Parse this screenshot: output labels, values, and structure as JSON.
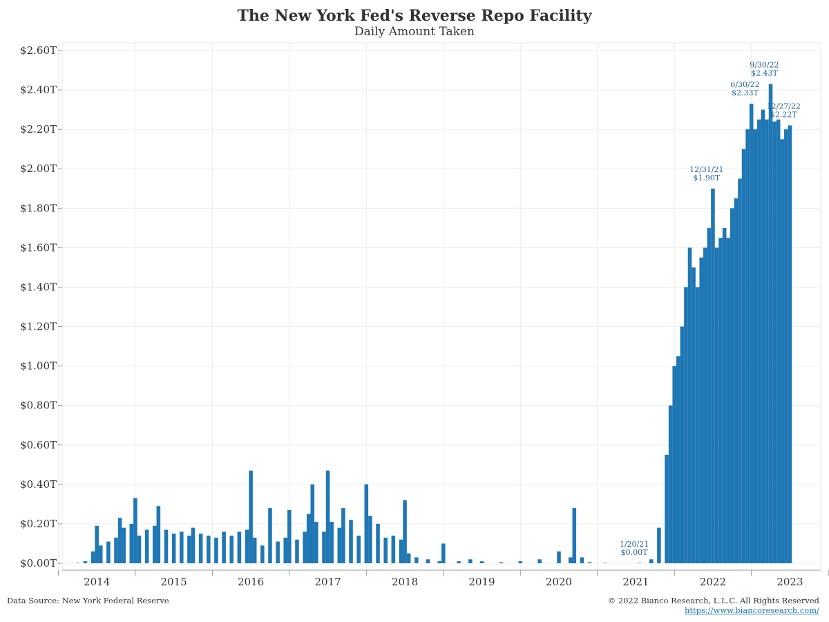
{
  "chart_data": {
    "type": "bar",
    "title": "The New York Fed's Reverse Repo Facility",
    "subtitle": "Daily Amount Taken",
    "xlabel": "",
    "ylabel": "",
    "x_range": [
      2013.55,
      2023.4
    ],
    "ylim": [
      0,
      2.6
    ],
    "y_ticks": [
      0,
      0.2,
      0.4,
      0.6,
      0.8,
      1.0,
      1.2,
      1.4,
      1.6,
      1.8,
      2.0,
      2.2,
      2.4,
      2.6
    ],
    "y_tick_labels": [
      "$0.00T",
      "$0.20T",
      "$0.40T",
      "$0.60T",
      "$0.80T",
      "$1.00T",
      "$1.20T",
      "$1.40T",
      "$1.60T",
      "$1.80T",
      "$2.00T",
      "$2.20T",
      "$2.40T",
      "$2.60T"
    ],
    "x_ticks": [
      2014,
      2015,
      2016,
      2017,
      2018,
      2019,
      2020,
      2021,
      2022,
      2023
    ],
    "x_tick_labels": [
      "2014",
      "2015",
      "2016",
      "2017",
      "2018",
      "2019",
      "2020",
      "2021",
      "2022",
      "2023"
    ],
    "grid": true,
    "bar_color": "#1f77b4",
    "series": [
      {
        "values_trillions_approx": [
          [
            2013.75,
            0.0
          ],
          [
            2013.85,
            0.01
          ],
          [
            2013.95,
            0.06
          ],
          [
            2014.0,
            0.19
          ],
          [
            2014.05,
            0.09
          ],
          [
            2014.15,
            0.11
          ],
          [
            2014.25,
            0.13
          ],
          [
            2014.3,
            0.23
          ],
          [
            2014.35,
            0.18
          ],
          [
            2014.45,
            0.2
          ],
          [
            2014.5,
            0.33
          ],
          [
            2014.55,
            0.14
          ],
          [
            2014.65,
            0.17
          ],
          [
            2014.75,
            0.19
          ],
          [
            2014.8,
            0.29
          ],
          [
            2014.9,
            0.17
          ],
          [
            2015.0,
            0.15
          ],
          [
            2015.1,
            0.16
          ],
          [
            2015.2,
            0.14
          ],
          [
            2015.25,
            0.18
          ],
          [
            2015.35,
            0.15
          ],
          [
            2015.45,
            0.14
          ],
          [
            2015.55,
            0.13
          ],
          [
            2015.65,
            0.16
          ],
          [
            2015.75,
            0.14
          ],
          [
            2015.85,
            0.16
          ],
          [
            2015.95,
            0.17
          ],
          [
            2016.0,
            0.47
          ],
          [
            2016.05,
            0.13
          ],
          [
            2016.15,
            0.09
          ],
          [
            2016.25,
            0.28
          ],
          [
            2016.35,
            0.11
          ],
          [
            2016.45,
            0.13
          ],
          [
            2016.5,
            0.27
          ],
          [
            2016.6,
            0.12
          ],
          [
            2016.7,
            0.16
          ],
          [
            2016.75,
            0.25
          ],
          [
            2016.8,
            0.4
          ],
          [
            2016.85,
            0.21
          ],
          [
            2016.95,
            0.16
          ],
          [
            2017.0,
            0.47
          ],
          [
            2017.05,
            0.21
          ],
          [
            2017.15,
            0.18
          ],
          [
            2017.2,
            0.28
          ],
          [
            2017.3,
            0.22
          ],
          [
            2017.4,
            0.14
          ],
          [
            2017.5,
            0.4
          ],
          [
            2017.55,
            0.24
          ],
          [
            2017.65,
            0.2
          ],
          [
            2017.75,
            0.13
          ],
          [
            2017.85,
            0.14
          ],
          [
            2017.95,
            0.12
          ],
          [
            2018.0,
            0.32
          ],
          [
            2018.05,
            0.05
          ],
          [
            2018.15,
            0.03
          ],
          [
            2018.3,
            0.02
          ],
          [
            2018.45,
            0.01
          ],
          [
            2018.5,
            0.1
          ],
          [
            2018.7,
            0.01
          ],
          [
            2018.85,
            0.02
          ],
          [
            2019.0,
            0.01
          ],
          [
            2019.25,
            0.005
          ],
          [
            2019.5,
            0.01
          ],
          [
            2019.75,
            0.02
          ],
          [
            2020.0,
            0.06
          ],
          [
            2020.15,
            0.03
          ],
          [
            2020.2,
            0.28
          ],
          [
            2020.3,
            0.03
          ],
          [
            2020.4,
            0.005
          ],
          [
            2020.6,
            0.0
          ],
          [
            2021.05,
            0.0
          ],
          [
            2021.2,
            0.02
          ],
          [
            2021.3,
            0.18
          ],
          [
            2021.4,
            0.55
          ],
          [
            2021.45,
            0.8
          ],
          [
            2021.5,
            1.0
          ],
          [
            2021.55,
            1.05
          ],
          [
            2021.6,
            1.2
          ],
          [
            2021.65,
            1.4
          ],
          [
            2021.7,
            1.6
          ],
          [
            2021.75,
            1.5
          ],
          [
            2021.8,
            1.4
          ],
          [
            2021.85,
            1.55
          ],
          [
            2021.9,
            1.6
          ],
          [
            2021.95,
            1.7
          ],
          [
            2022.0,
            1.9
          ],
          [
            2022.05,
            1.6
          ],
          [
            2022.1,
            1.65
          ],
          [
            2022.15,
            1.7
          ],
          [
            2022.2,
            1.65
          ],
          [
            2022.25,
            1.8
          ],
          [
            2022.3,
            1.85
          ],
          [
            2022.35,
            1.95
          ],
          [
            2022.4,
            2.1
          ],
          [
            2022.45,
            2.2
          ],
          [
            2022.5,
            2.33
          ],
          [
            2022.55,
            2.2
          ],
          [
            2022.6,
            2.25
          ],
          [
            2022.65,
            2.3
          ],
          [
            2022.7,
            2.25
          ],
          [
            2022.75,
            2.43
          ],
          [
            2022.8,
            2.24
          ],
          [
            2022.85,
            2.25
          ],
          [
            2022.9,
            2.15
          ],
          [
            2022.95,
            2.2
          ],
          [
            2023.0,
            2.22
          ]
        ]
      }
    ],
    "annotations": [
      {
        "x": 2021.05,
        "y": 0.0,
        "line1": "1/20/21",
        "line2": "$0.00T"
      },
      {
        "x": 2021.99,
        "y": 1.9,
        "line1": "12/31/21",
        "line2": "$1.90T"
      },
      {
        "x": 2022.49,
        "y": 2.33,
        "line1": "6/30/22",
        "line2": "$2.33T"
      },
      {
        "x": 2022.74,
        "y": 2.43,
        "line1": "9/30/22",
        "line2": "$2.43T"
      },
      {
        "x": 2022.99,
        "y": 2.22,
        "line1": "12/27/22",
        "line2": "$2.22T"
      }
    ]
  },
  "footer": {
    "source": "Data Source: New York Federal Reserve",
    "copyright": "© 2022 Bianco Research, L.L.C. All Rights Reserved",
    "url": "https://www.biancoresearch.com/"
  }
}
